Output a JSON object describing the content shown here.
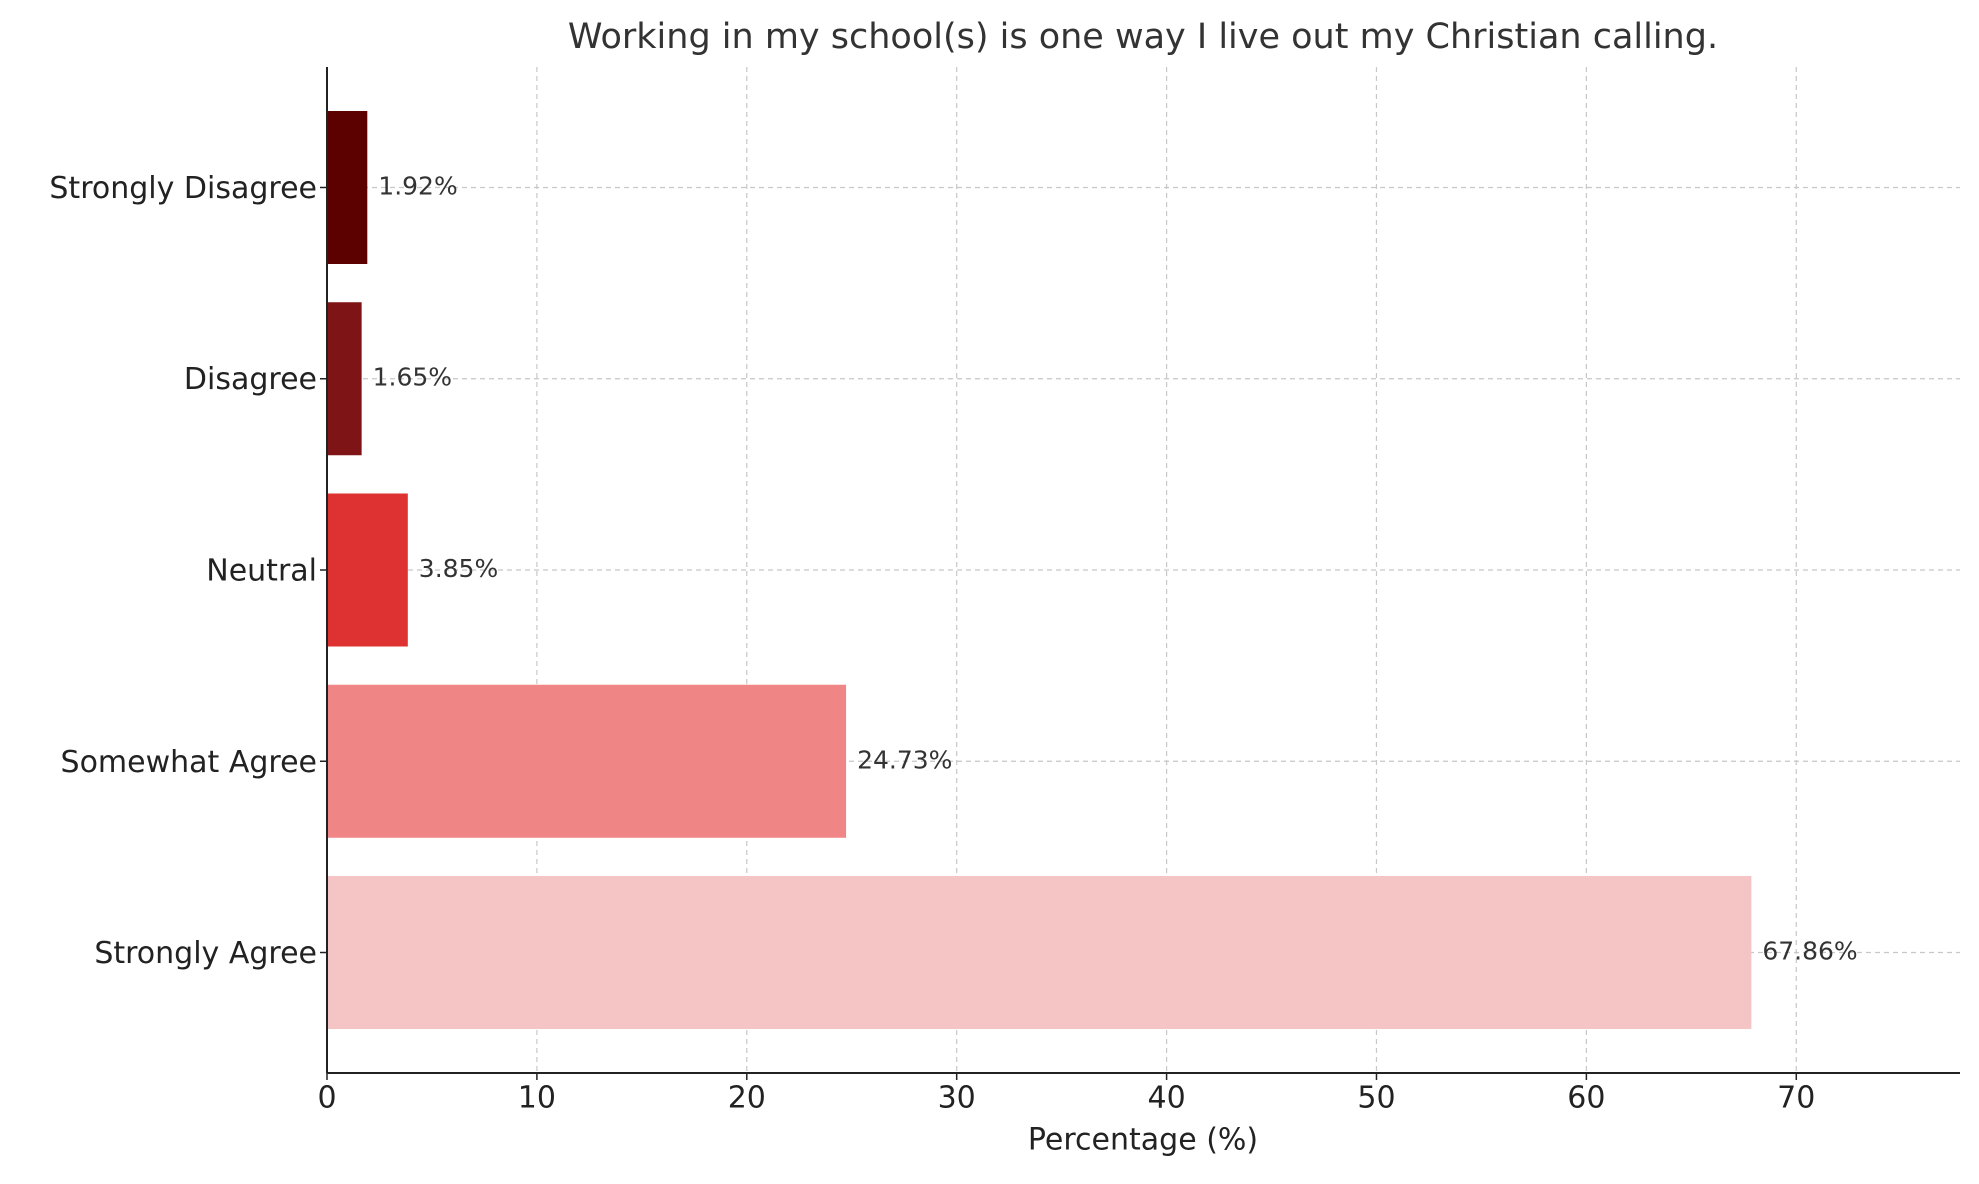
{
  "chart_data": {
    "type": "bar",
    "orientation": "horizontal",
    "title": "Working in my school(s) is one way I live out my Christian calling.",
    "x_label": "Percentage (%)",
    "categories": [
      "Strongly Disagree",
      "Disagree",
      "Neutral",
      "Somewhat Agree",
      "Strongly Agree"
    ],
    "values": [
      1.92,
      1.65,
      3.85,
      24.73,
      67.86
    ],
    "value_labels": [
      "1.92%",
      "1.65%",
      "3.85%",
      "24.73%",
      "67.86%"
    ],
    "colors": [
      "#5c0000",
      "#7f1416",
      "#de3131",
      "#f08585",
      "#f5c5c5"
    ],
    "xlim": [
      0,
      77.8
    ],
    "xticks": [
      0,
      10,
      20,
      30,
      40,
      50,
      60,
      70
    ],
    "grid": true
  }
}
